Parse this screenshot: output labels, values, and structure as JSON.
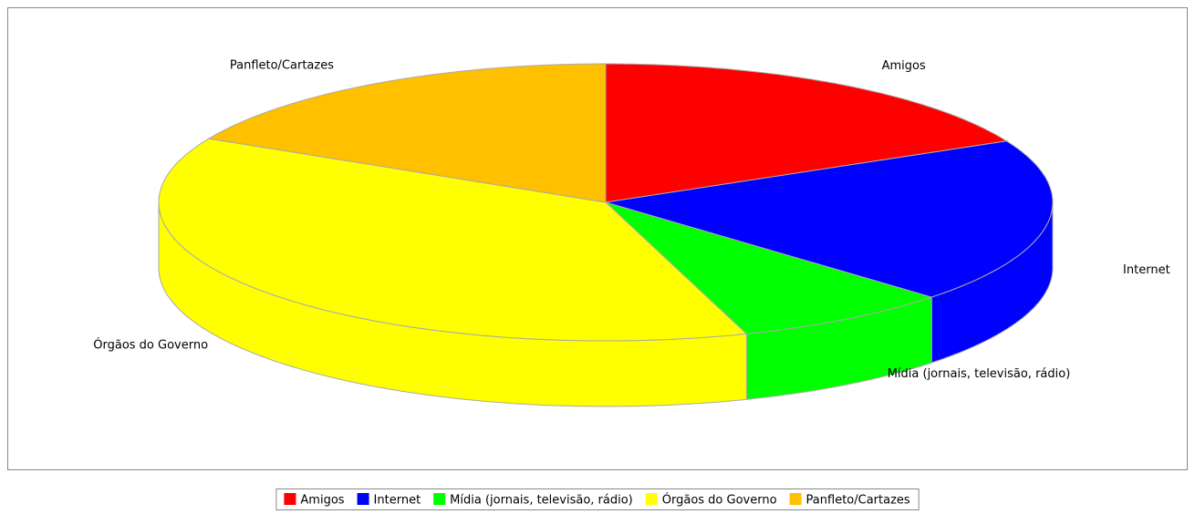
{
  "chart_data": {
    "type": "pie3d",
    "categories": [
      "Amigos",
      "Internet",
      "Mídia (jornais, televisão, rádio)",
      "Órgãos do Governo",
      "Panfleto/Cartazes"
    ],
    "values": [
      17.7,
      19.3,
      7.9,
      37.7,
      17.4
    ],
    "colors": [
      "#ff0000",
      "#0000ff",
      "#00ff00",
      "#ffff00",
      "#ffc000"
    ],
    "legend": "bottom"
  }
}
